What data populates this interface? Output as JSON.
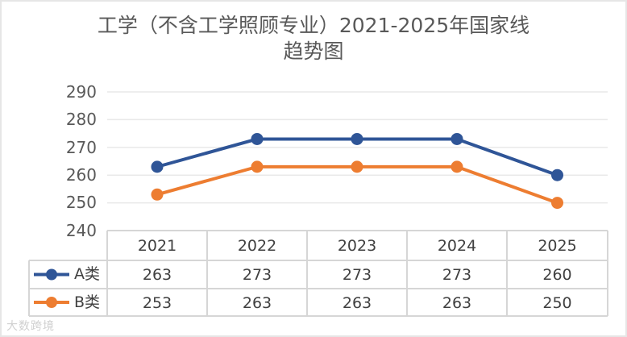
{
  "chart_data": {
    "type": "line",
    "title": "工学（不含工学照顾专业）2021-2025年国家线趋势图",
    "title_lines": [
      "工学（不含工学照顾专业）2021-2025年国家线",
      "趋势图"
    ],
    "categories": [
      "2021",
      "2022",
      "2023",
      "2024",
      "2025"
    ],
    "series": [
      {
        "name": "A类",
        "color": "#2f5597",
        "values": [
          263,
          273,
          273,
          273,
          260
        ]
      },
      {
        "name": "B类",
        "color": "#ed7d31",
        "values": [
          253,
          263,
          263,
          263,
          250
        ]
      }
    ],
    "xlabel": "",
    "ylabel": "",
    "ylim": [
      240,
      290
    ],
    "yticks": [
      "290",
      "280",
      "270",
      "260",
      "250",
      "240"
    ],
    "grid": true,
    "legend_position": "data-table"
  },
  "watermark": "大数跨境"
}
